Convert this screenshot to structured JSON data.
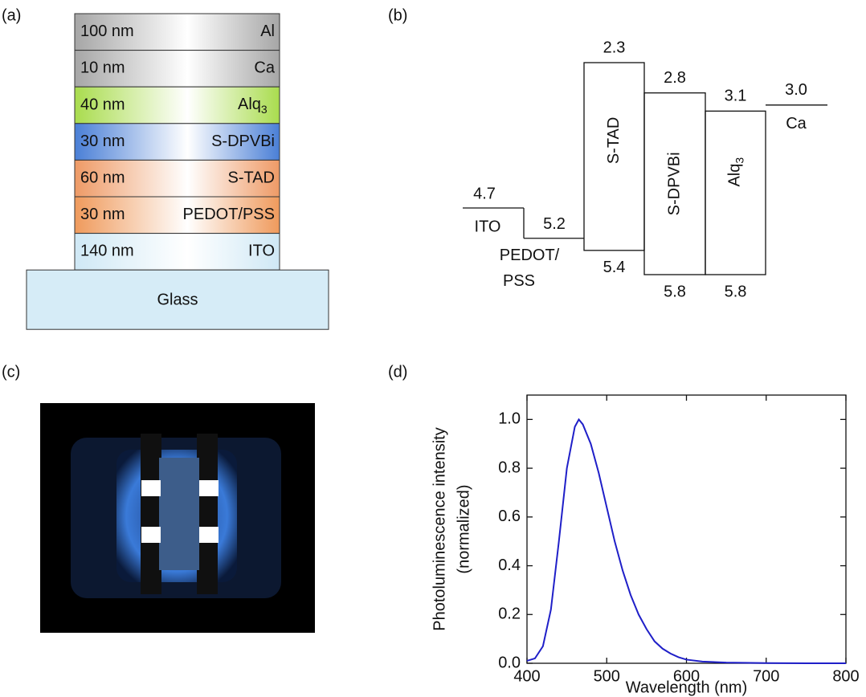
{
  "panel_labels": [
    "(a)",
    "(b)",
    "(c)",
    "(d)"
  ],
  "device_stack": {
    "layers": [
      {
        "thickness": "100 nm",
        "material": "Al",
        "color": "#a6a6a6"
      },
      {
        "thickness": "10 nm",
        "material": "Ca",
        "color": "#a6a6a6"
      },
      {
        "thickness": "40 nm",
        "material": "Alq",
        "subscript": "3",
        "color": "#a9dc4e"
      },
      {
        "thickness": "30 nm",
        "material": "S-DPVBi",
        "color": "#4a7fd6"
      },
      {
        "thickness": "60 nm",
        "material": "S-TAD",
        "color": "#ee9a66"
      },
      {
        "thickness": "30 nm",
        "material": "PEDOT/PSS",
        "color": "#ef9a5c"
      },
      {
        "thickness": "140 nm",
        "material": "ITO",
        "color": "#cfe8f5"
      }
    ],
    "substrate": {
      "label": "Glass",
      "color": "#d6ecf7"
    }
  },
  "energy_diagram": {
    "levels": [
      {
        "name": "ITO",
        "level": "4.7"
      },
      {
        "name_lines": [
          "PEDOT/",
          "PSS"
        ],
        "level": "5.2"
      },
      {
        "name": "S-TAD",
        "lumo": "2.3",
        "homo": "5.4"
      },
      {
        "name": "S-DPVBi",
        "lumo": "2.8",
        "homo": "5.8"
      },
      {
        "name": "Alq",
        "subscript": "3",
        "lumo": "3.1",
        "homo": "5.8"
      },
      {
        "name": "Ca",
        "level": "3.0"
      }
    ]
  },
  "chart_data": {
    "type": "line",
    "color": "#1f1fc8",
    "xlabel": "Wavelength (nm)",
    "ylabel": [
      "Photoluminescence intensity",
      "(normalized)"
    ],
    "x": [
      400,
      410,
      420,
      430,
      440,
      450,
      460,
      465,
      470,
      480,
      490,
      500,
      510,
      520,
      530,
      540,
      550,
      560,
      570,
      580,
      590,
      600,
      620,
      650,
      700,
      750,
      800
    ],
    "values": [
      0.01,
      0.02,
      0.07,
      0.22,
      0.5,
      0.8,
      0.97,
      1.0,
      0.98,
      0.9,
      0.78,
      0.64,
      0.5,
      0.38,
      0.28,
      0.2,
      0.14,
      0.09,
      0.06,
      0.04,
      0.025,
      0.015,
      0.007,
      0.003,
      0.001,
      0,
      0
    ],
    "xlim": [
      400,
      800
    ],
    "xticks": [
      400,
      500,
      600,
      700,
      800
    ],
    "ylim": [
      0,
      1.1
    ],
    "yticks": [
      {
        "value": 0,
        "label": "0.0"
      },
      0.2,
      0.4,
      0.6,
      0.8,
      {
        "value": 1,
        "label": "1.0"
      }
    ]
  }
}
